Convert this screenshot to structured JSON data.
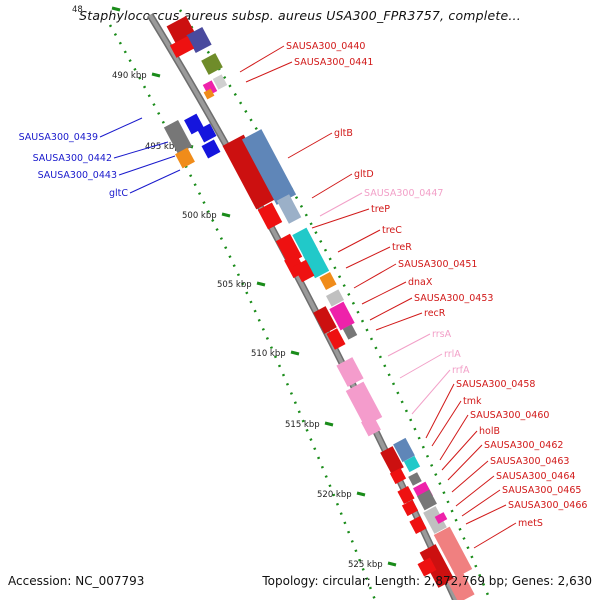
{
  "title": "Staphylococcus aureus subsp. aureus USA300_FPR3757, complete...",
  "footer": {
    "accession": "Accession: NC_007793",
    "summary": "Topology: circular; Length: 2,872,769 bp; Genes: 2,630"
  },
  "colors": {
    "forward_label": "#d11919",
    "reverse_label": "#1a1acc",
    "rna_label": "#f2a0c8",
    "backbone": "#9a9a9a",
    "tick_mark": "#1a8c1a"
  },
  "ruler": {
    "unit": "kbp",
    "ticks": [
      {
        "label": "48"
      },
      {
        "label": "490 kbp"
      },
      {
        "label": "495 kbp"
      },
      {
        "label": "500 kbp"
      },
      {
        "label": "505 kbp"
      },
      {
        "label": "510 kbp"
      },
      {
        "label": "515 kbp"
      },
      {
        "label": "520 kbp"
      },
      {
        "label": "525 kbp"
      }
    ]
  },
  "reverse_labels": [
    {
      "text": "SAUSA300_0439"
    },
    {
      "text": "SAUSA300_0442"
    },
    {
      "text": "SAUSA300_0443"
    },
    {
      "text": "gltC"
    }
  ],
  "forward_labels": [
    {
      "text": "SAUSA300_0440",
      "kind": "cds"
    },
    {
      "text": "SAUSA300_0441",
      "kind": "cds"
    },
    {
      "text": "gltB",
      "kind": "cds"
    },
    {
      "text": "gltD",
      "kind": "cds"
    },
    {
      "text": "SAUSA300_0447",
      "kind": "rna"
    },
    {
      "text": "treP",
      "kind": "cds"
    },
    {
      "text": "treC",
      "kind": "cds"
    },
    {
      "text": "treR",
      "kind": "cds"
    },
    {
      "text": "SAUSA300_0451",
      "kind": "cds"
    },
    {
      "text": "dnaX",
      "kind": "cds"
    },
    {
      "text": "SAUSA300_0453",
      "kind": "cds"
    },
    {
      "text": "recR",
      "kind": "cds"
    },
    {
      "text": "rrsA",
      "kind": "rna"
    },
    {
      "text": "rrlA",
      "kind": "rna"
    },
    {
      "text": "rrfA",
      "kind": "rna"
    },
    {
      "text": "SAUSA300_0458",
      "kind": "cds"
    },
    {
      "text": "tmk",
      "kind": "cds"
    },
    {
      "text": "SAUSA300_0460",
      "kind": "cds"
    },
    {
      "text": "holB",
      "kind": "cds"
    },
    {
      "text": "SAUSA300_0462",
      "kind": "cds"
    },
    {
      "text": "SAUSA300_0463",
      "kind": "cds"
    },
    {
      "text": "SAUSA300_0464",
      "kind": "cds"
    },
    {
      "text": "SAUSA300_0465",
      "kind": "cds"
    },
    {
      "text": "SAUSA300_0466",
      "kind": "cds"
    },
    {
      "text": "metS",
      "kind": "cds"
    }
  ]
}
